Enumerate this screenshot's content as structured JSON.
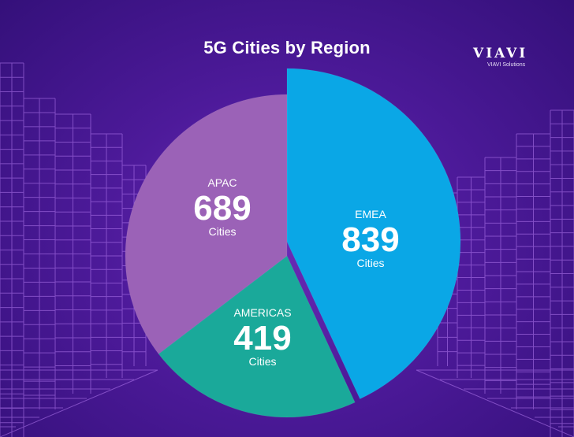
{
  "title": "5G Cities by Region",
  "brand": {
    "mark": "VIAVI",
    "tagline": "VIAVI Solutions"
  },
  "chart_data": {
    "type": "pie",
    "title": "5G Cities by Region",
    "unit": "Cities",
    "categories": [
      "EMEA",
      "AMERICAS",
      "APAC"
    ],
    "values": [
      839,
      419,
      689
    ],
    "colors": [
      "#0aa7e6",
      "#1aa99a",
      "#9b62b7"
    ],
    "exploded": "EMEA"
  }
}
